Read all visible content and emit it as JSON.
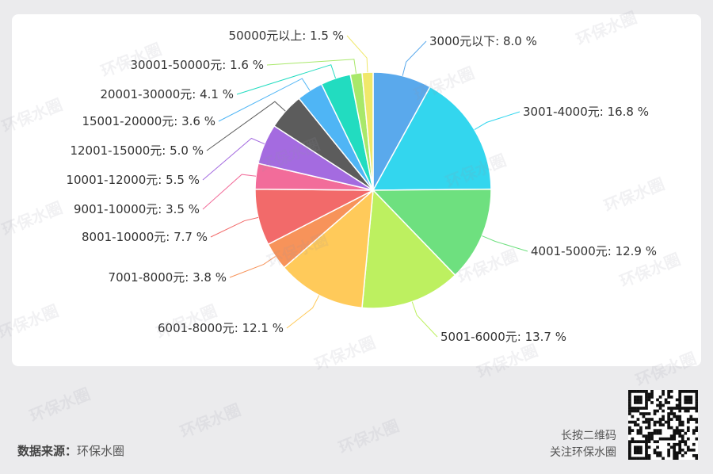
{
  "chart_data": {
    "type": "pie",
    "slices": [
      {
        "label": "3000元以下",
        "value": 8.0,
        "color": "#5aa9ec"
      },
      {
        "label": "3001-4000元",
        "value": 16.8,
        "color": "#33d6ee"
      },
      {
        "label": "4001-5000元",
        "value": 12.9,
        "color": "#6ee07f"
      },
      {
        "label": "5001-6000元",
        "value": 13.7,
        "color": "#bdf060"
      },
      {
        "label": "6001-8000元",
        "value": 12.1,
        "color": "#ffca5a"
      },
      {
        "label": "7001-8000元",
        "value": 3.8,
        "color": "#f7935a"
      },
      {
        "label": "8001-10000元",
        "value": 7.7,
        "color": "#f26a6a"
      },
      {
        "label": "9001-10000元",
        "value": 3.5,
        "color": "#f26c9a"
      },
      {
        "label": "10001-12000元",
        "value": 5.5,
        "color": "#a46be0"
      },
      {
        "label": "12001-15000元",
        "value": 5.0,
        "color": "#5c5c5c"
      },
      {
        "label": "15001-20000元",
        "value": 3.6,
        "color": "#4fb5f5"
      },
      {
        "label": "20001-30000元",
        "value": 4.1,
        "color": "#22dcc0"
      },
      {
        "label": "30001-50000元",
        "value": 1.6,
        "color": "#a8e86a"
      },
      {
        "label": "50000元以上",
        "value": 1.5,
        "color": "#f0e86a"
      }
    ],
    "value_suffix": " %",
    "start": "top, clockwise"
  },
  "watermark": "环保水圈",
  "footer": {
    "source_key": "数据来源：",
    "source_value": "环保水圈",
    "follow_line1": "长按二维码",
    "follow_line2": "关注环保水圈"
  }
}
